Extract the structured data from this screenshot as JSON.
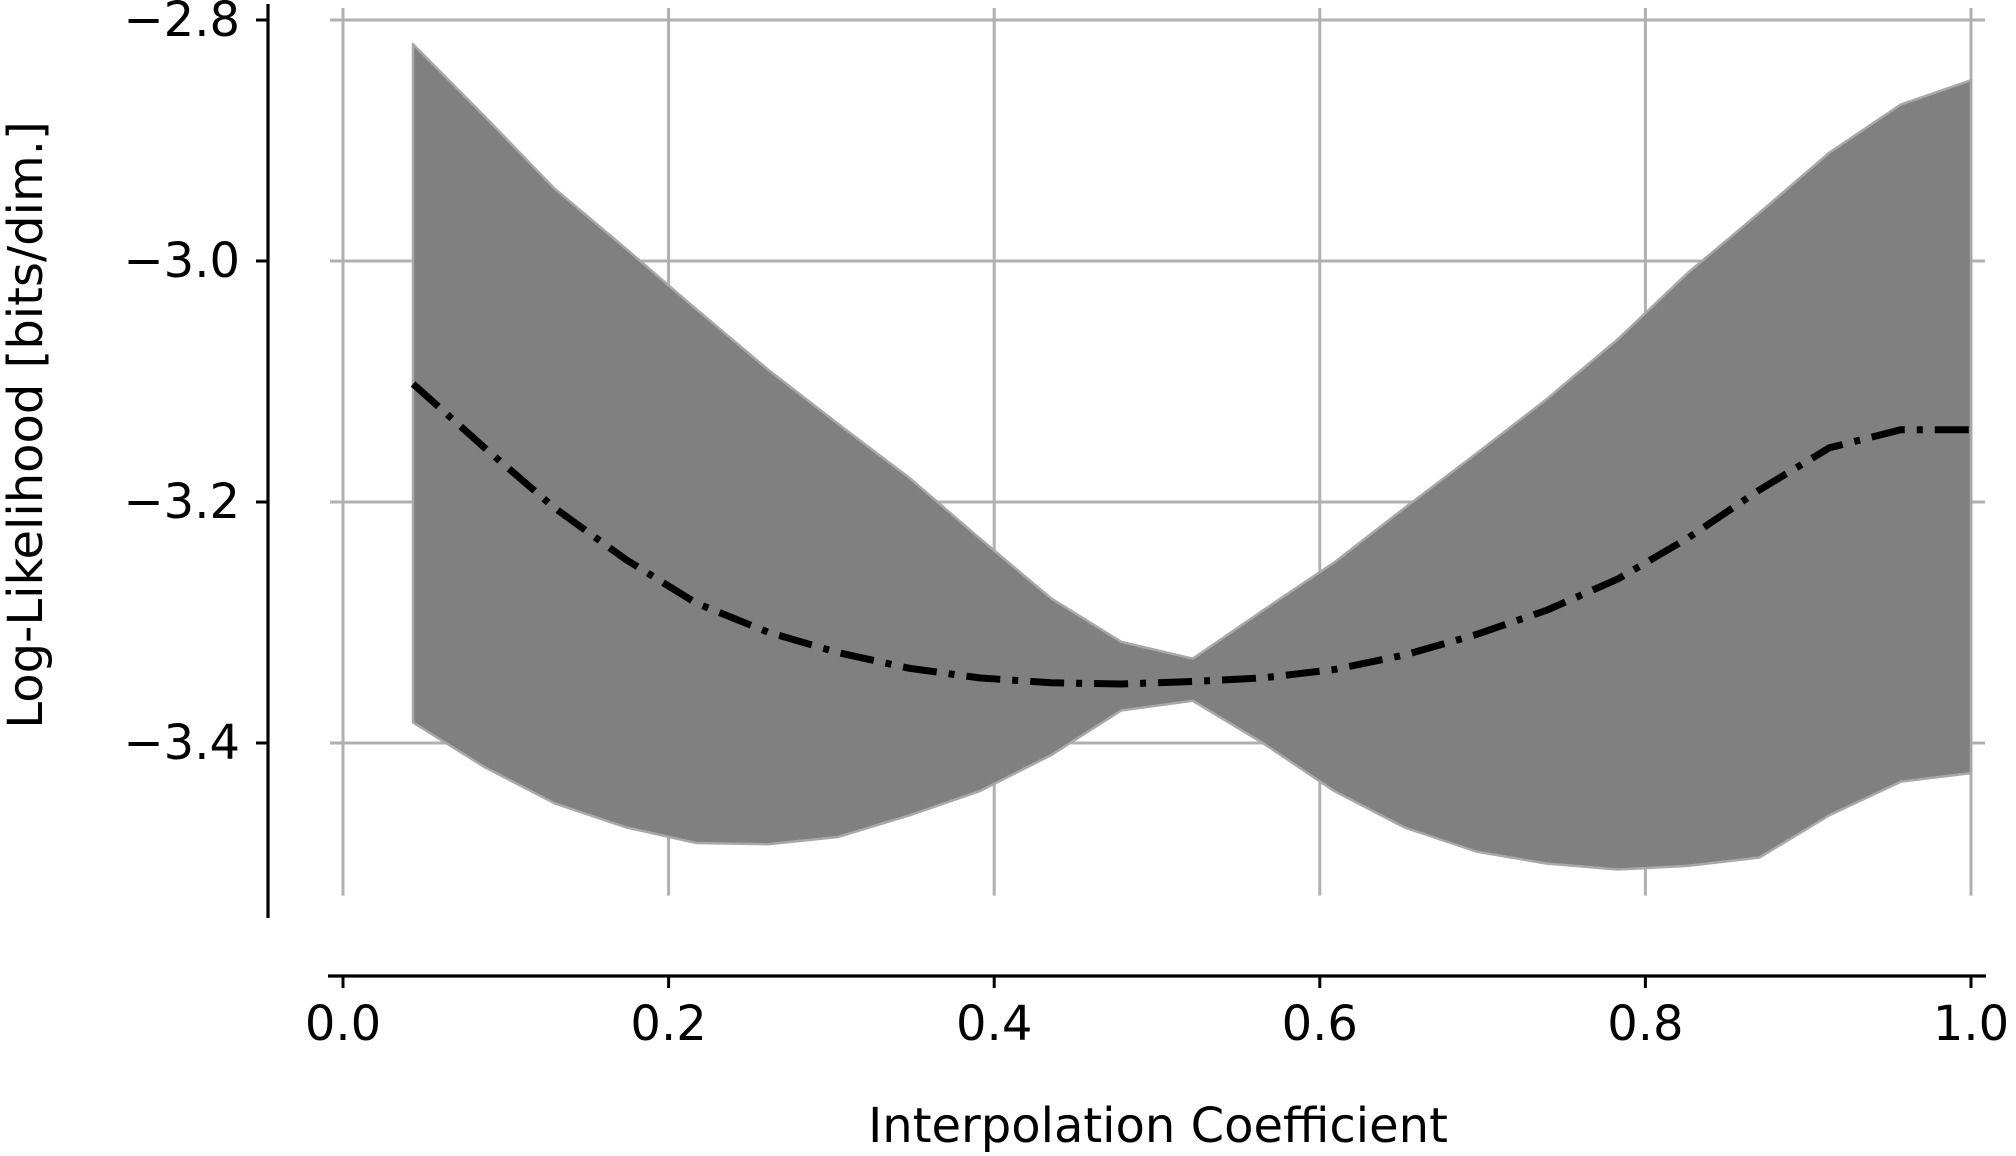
{
  "chart_data": {
    "type": "line",
    "title": "",
    "xlabel": "Interpolation Coefficient",
    "ylabel": "Log-Likelihood [bits/dim.]",
    "xlim": [
      0.0,
      1.0
    ],
    "ylim": [
      -3.53,
      -2.79
    ],
    "grid": true,
    "x_ticks": [
      0.0,
      0.2,
      0.4,
      0.6,
      0.8,
      1.0
    ],
    "x_tick_labels": [
      "0.0",
      "0.2",
      "0.4",
      "0.6",
      "0.8",
      "1.0"
    ],
    "y_ticks": [
      -2.8,
      -3.0,
      -3.2,
      -3.4
    ],
    "y_tick_labels": [
      "−2.8",
      "−3.0",
      "−3.2",
      "−3.4"
    ],
    "x": [
      0.043,
      0.087,
      0.13,
      0.174,
      0.217,
      0.261,
      0.304,
      0.348,
      0.391,
      0.435,
      0.478,
      0.522,
      0.565,
      0.609,
      0.652,
      0.696,
      0.739,
      0.783,
      0.826,
      0.87,
      0.913,
      0.957,
      1.0
    ],
    "series": [
      {
        "style": "dashdot",
        "color": "#000000",
        "values": [
          -3.102,
          -3.155,
          -3.205,
          -3.248,
          -3.284,
          -3.308,
          -3.325,
          -3.338,
          -3.346,
          -3.35,
          -3.351,
          -3.349,
          -3.346,
          -3.339,
          -3.327,
          -3.31,
          -3.29,
          -3.264,
          -3.23,
          -3.19,
          -3.155,
          -3.14,
          -3.14
        ]
      }
    ],
    "band": {
      "color": "#808080",
      "upper": [
        -2.82,
        -2.88,
        -2.94,
        -2.99,
        -3.04,
        -3.09,
        -3.135,
        -3.18,
        -3.23,
        -3.28,
        -3.316,
        -3.33,
        -3.29,
        -3.25,
        -3.205,
        -3.16,
        -3.115,
        -3.065,
        -3.01,
        -2.96,
        -2.91,
        -2.87,
        -2.85
      ],
      "lower": [
        -3.383,
        -3.42,
        -3.45,
        -3.47,
        -3.483,
        -3.484,
        -3.478,
        -3.46,
        -3.44,
        -3.41,
        -3.373,
        -3.365,
        -3.4,
        -3.44,
        -3.47,
        -3.49,
        -3.5,
        -3.505,
        -3.502,
        -3.495,
        -3.46,
        -3.432,
        -3.425
      ]
    }
  }
}
